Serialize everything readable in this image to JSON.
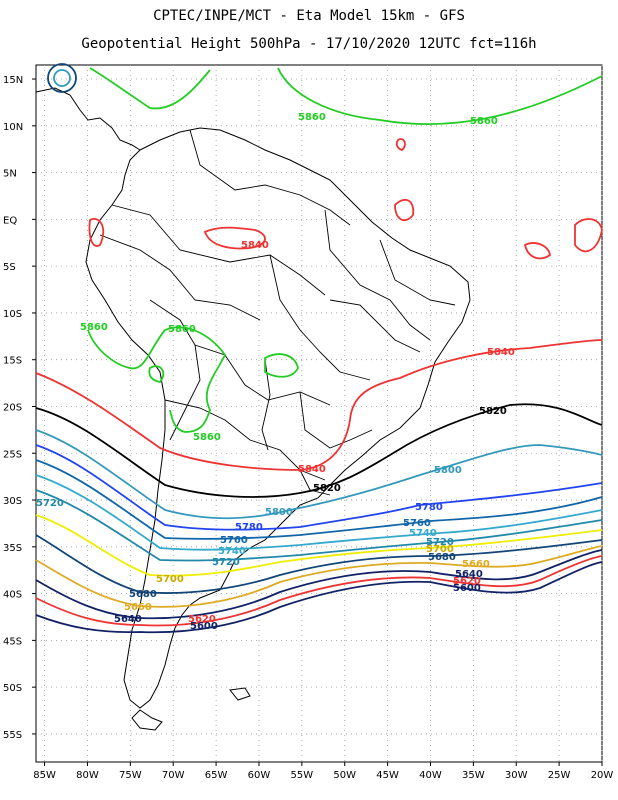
{
  "header": {
    "line1": "CPTEC/INPE/MCT -  Eta Model 15km - GFS",
    "line2": "Geopotential Height 500hPa - 17/10/2020 12UTC fct=116h"
  },
  "axes": {
    "lat_labels": [
      "15N",
      "10N",
      "5N",
      "EQ",
      "5S",
      "10S",
      "15S",
      "20S",
      "25S",
      "30S",
      "35S",
      "40S",
      "45S",
      "50S",
      "55S"
    ],
    "lon_labels": [
      "85W",
      "80W",
      "75W",
      "70W",
      "65W",
      "60W",
      "55W",
      "50W",
      "45W",
      "40W",
      "35W",
      "30W",
      "25W",
      "20W"
    ]
  },
  "contours": [
    {
      "level": "5860",
      "color": "#22cc22"
    },
    {
      "level": "5840",
      "color": "#ee3333"
    },
    {
      "level": "5820",
      "color": "#000000"
    },
    {
      "level": "5800",
      "color": "#3399bb"
    },
    {
      "level": "5780",
      "color": "#2244ee"
    },
    {
      "level": "5760",
      "color": "#1166aa"
    },
    {
      "level": "5740",
      "color": "#33aacc"
    },
    {
      "level": "5720",
      "color": "#2288aa"
    },
    {
      "level": "5700",
      "color": "#eeee00"
    },
    {
      "level": "5680",
      "color": "#114477"
    },
    {
      "level": "5660",
      "color": "#ddaa22"
    },
    {
      "level": "5640",
      "color": "#112266"
    },
    {
      "level": "5620",
      "color": "#ee3333"
    },
    {
      "level": "5600",
      "color": "#112266"
    }
  ],
  "labels": {
    "l5860a": "5860",
    "l5860b": "5860",
    "l5860c": "5860",
    "l5860d": "5860",
    "l5860e": "5860",
    "l5840a": "5840",
    "l5840b": "5840",
    "l5840c": "5840",
    "l5820a": "5820",
    "l5820b": "5820",
    "l5800a": "5800",
    "l5800b": "5800",
    "l5780a": "5780",
    "l5780b": "5780",
    "l5760a": "5760",
    "l5760b": "5760",
    "l5740a": "5740",
    "l5740b": "5740",
    "l5720a": "5720",
    "l5720b": "5720",
    "l5720c": "5720",
    "l5700a": "5700",
    "l5700b": "5700",
    "l5680a": "5680",
    "l5680b": "5680",
    "l5660a": "5660",
    "l5660b": "5660",
    "l5640a": "5640",
    "l5640b": "5640",
    "l5620a": "5620",
    "l5620b": "5620",
    "l5600a": "5600",
    "l5600b": "5600"
  }
}
